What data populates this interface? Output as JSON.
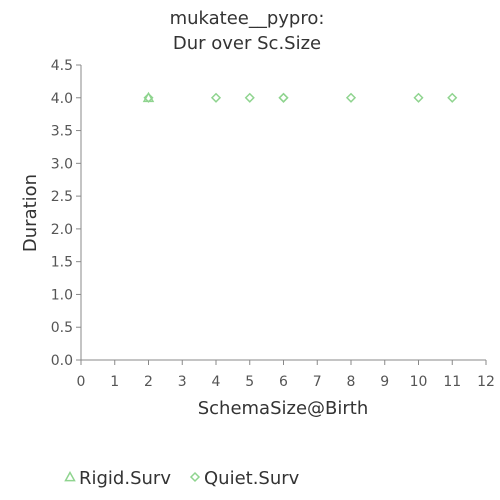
{
  "chart_data": {
    "type": "scatter",
    "title_lines": [
      "mukatee__pypro:",
      "Dur over Sc.Size"
    ],
    "xlabel": "SchemaSize@Birth",
    "ylabel": "Duration",
    "xlim": [
      0,
      12
    ],
    "ylim": [
      0.0,
      4.5
    ],
    "x_ticks": [
      "0",
      "1",
      "2",
      "3",
      "4",
      "5",
      "6",
      "7",
      "8",
      "9",
      "10",
      "11",
      "12"
    ],
    "y_ticks": [
      "0.0",
      "0.5",
      "1.0",
      "1.5",
      "2.0",
      "2.5",
      "3.0",
      "3.5",
      "4.0",
      "4.5"
    ],
    "grid": false,
    "legend_position": "bottom-left",
    "series": [
      {
        "name": "Rigid.Surv",
        "marker": "triangle",
        "color": "#8fd48f",
        "points": [
          {
            "x": 2,
            "y": 4.0
          }
        ]
      },
      {
        "name": "Quiet.Surv",
        "marker": "diamond",
        "color": "#8fd48f",
        "points": [
          {
            "x": 2,
            "y": 4.0
          },
          {
            "x": 4,
            "y": 4.0
          },
          {
            "x": 5,
            "y": 4.0
          },
          {
            "x": 6,
            "y": 4.0
          },
          {
            "x": 6,
            "y": 4.0
          },
          {
            "x": 8,
            "y": 4.0
          },
          {
            "x": 10,
            "y": 4.0
          },
          {
            "x": 11,
            "y": 4.0
          }
        ]
      }
    ]
  }
}
